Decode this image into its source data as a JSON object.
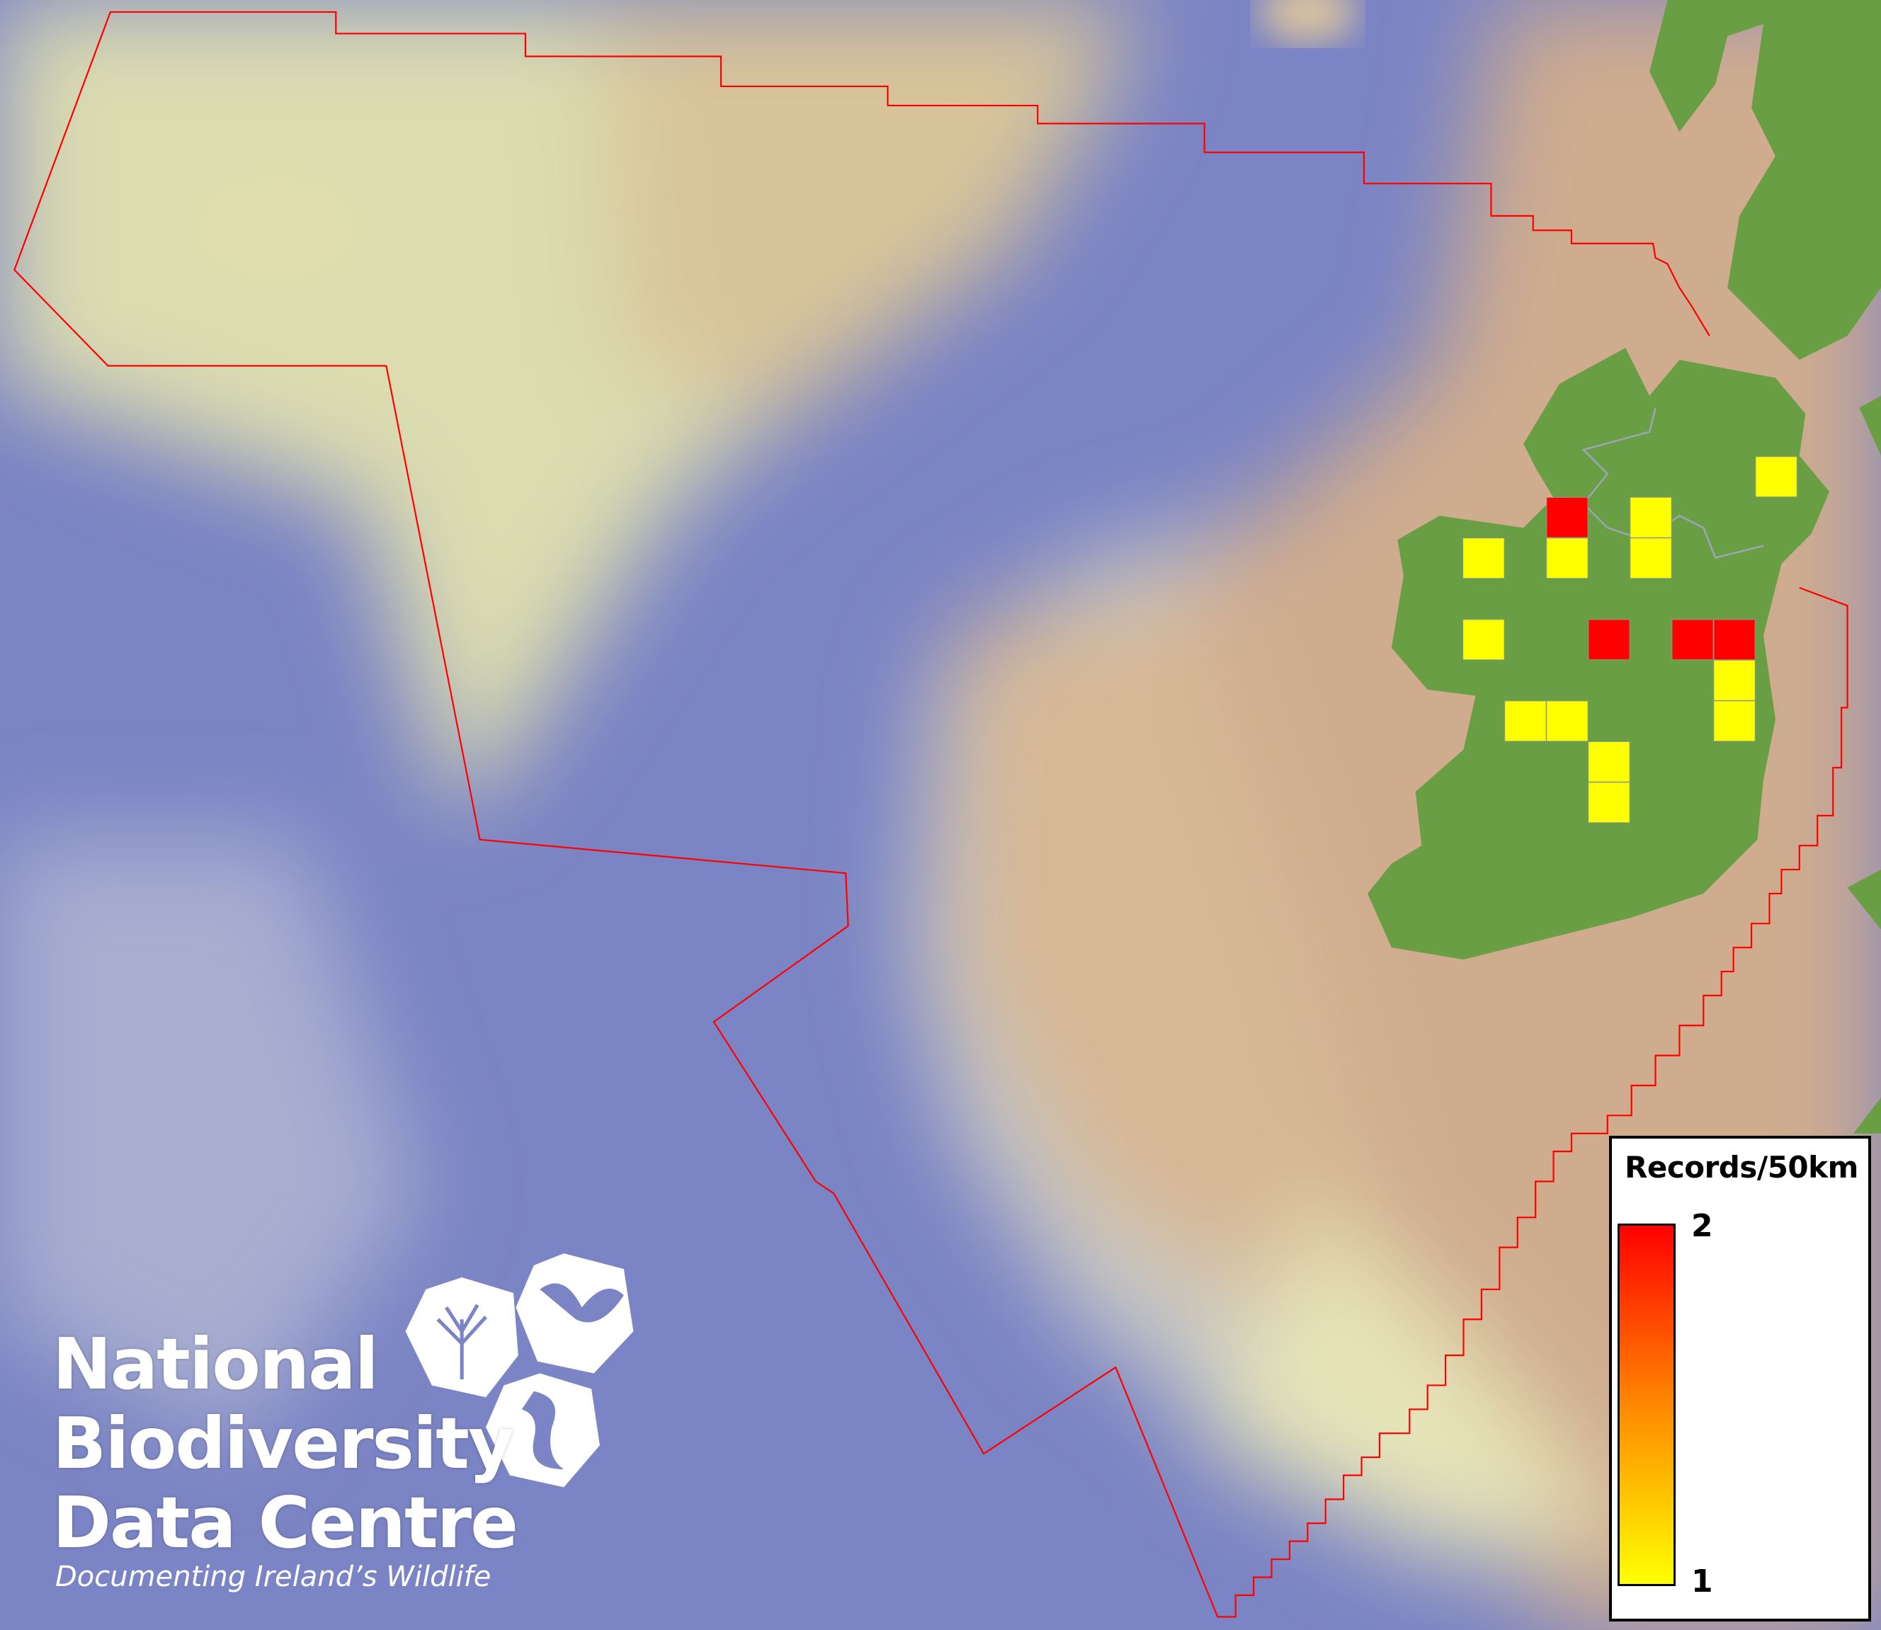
{
  "map": {
    "colors": {
      "ocean_deep": "#7b84c4",
      "shelf": "#c8ccc4",
      "shallow": "#e4e2b0",
      "land_sea": "#cfac8e",
      "land": "#6a9e45",
      "boundary": "#ff0000",
      "low": "#ffff00",
      "high": "#ff0000"
    },
    "grid_cell_size_km": 50,
    "cells": [
      {
        "col": 7,
        "row": 0,
        "records": 1
      },
      {
        "col": 2,
        "row": 1,
        "records": 2
      },
      {
        "col": 4,
        "row": 1,
        "records": 1
      },
      {
        "col": 0,
        "row": 2,
        "records": 1
      },
      {
        "col": 2,
        "row": 2,
        "records": 1
      },
      {
        "col": 4,
        "row": 2,
        "records": 1
      },
      {
        "col": 0,
        "row": 4,
        "records": 1
      },
      {
        "col": 3,
        "row": 4,
        "records": 2
      },
      {
        "col": 5,
        "row": 4,
        "records": 2
      },
      {
        "col": 6,
        "row": 4,
        "records": 2
      },
      {
        "col": 6,
        "row": 5,
        "records": 1
      },
      {
        "col": 1,
        "row": 6,
        "records": 1
      },
      {
        "col": 2,
        "row": 6,
        "records": 1
      },
      {
        "col": 6,
        "row": 6,
        "records": 1
      },
      {
        "col": 3,
        "row": 7,
        "records": 1
      },
      {
        "col": 3,
        "row": 8,
        "records": 1
      }
    ]
  },
  "legend": {
    "title": "Records/50km",
    "max": "2",
    "min": "1"
  },
  "logo": {
    "line1": "National",
    "line2": "Biodiversity",
    "line3": "Data Centre",
    "tagline": "Documenting Ireland’s Wildlife",
    "icons": [
      "tree-icon",
      "butterfly-icon",
      "seahorse-icon"
    ]
  }
}
